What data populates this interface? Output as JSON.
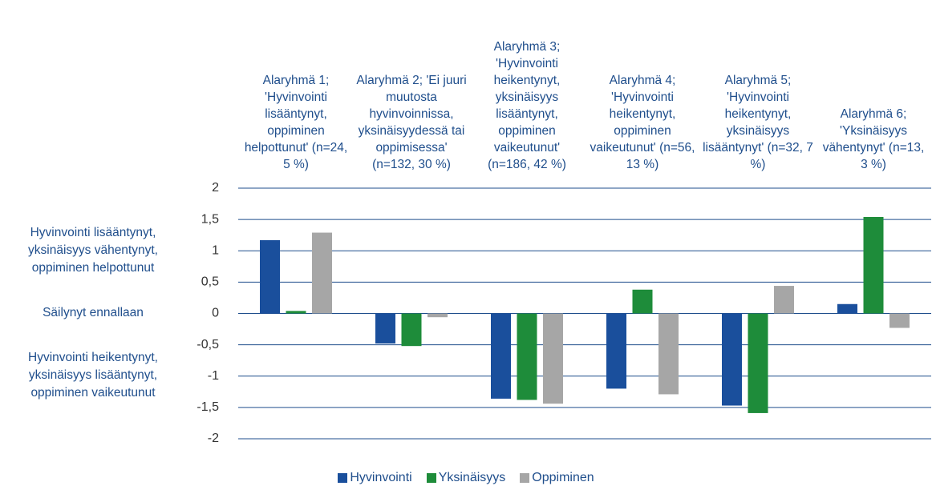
{
  "chart_data": {
    "type": "bar",
    "categories": [
      "Alaryhmä 1; 'Hyvinvointi lisääntynyt, oppiminen helpottunut' (n=24, 5 %)",
      "Alaryhmä 2; 'Ei juuri muutosta hyvinvoinnissa, yksinäisyydessä tai oppimisessa' (n=132, 30 %)",
      "Alaryhmä 3; 'Hyvinvointi heikentynyt, yksinäisyys lisääntynyt, oppiminen vaikeutunut' (n=186, 42 %)",
      "Alaryhmä 4; 'Hyvinvointi heikentynyt, oppiminen vaikeutunut' (n=56, 13 %)",
      "Alaryhmä 5; 'Hyvinvointi heikentynyt, yksinäisyys lisääntynyt' (n=32, 7 %)",
      "Alaryhmä 6; 'Yksinäisyys vähentynyt' (n=13, 3 %)"
    ],
    "series": [
      {
        "name": "Hyvinvointi",
        "color": "#1a4f9c",
        "values": [
          1.17,
          -0.48,
          -1.36,
          -1.2,
          -1.47,
          0.15
        ]
      },
      {
        "name": "Yksinäisyys",
        "color": "#1e8c3a",
        "values": [
          0.04,
          -0.52,
          -1.38,
          0.38,
          -1.59,
          1.54
        ]
      },
      {
        "name": "Oppiminen",
        "color": "#a6a6a6",
        "values": [
          1.29,
          -0.06,
          -1.44,
          -1.29,
          0.44,
          -0.23
        ]
      }
    ],
    "annotations": [
      "Hyvinvointi lisääntynyt, yksinäisyys vähentynyt, oppiminen helpottunut",
      "Säilynyt ennallaan",
      "Hyvinvointi heikentynyt, yksinäisyys lisääntynyt, oppiminen vaikeutunut"
    ],
    "ylim": [
      -2,
      2
    ],
    "yticks": [
      -2,
      {
        "value": -1.5,
        "label": "-1,5"
      },
      -1,
      {
        "value": -0.5,
        "label": "-0,5"
      },
      0,
      {
        "value": 0.5,
        "label": "0,5"
      },
      1,
      {
        "value": 1.5,
        "label": "1,5"
      },
      2
    ],
    "grid": true,
    "legend": "bottom"
  }
}
